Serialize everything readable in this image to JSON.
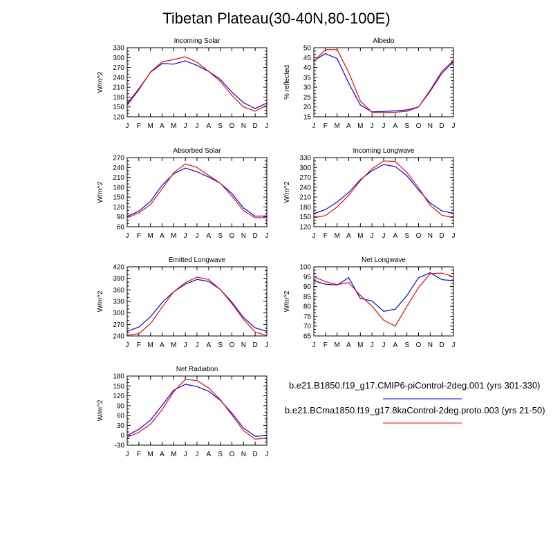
{
  "title": "Tibetan Plateau(30-40N,80-100E)",
  "legend": [
    {
      "label": "b.e21.B1850.f19_g17.CMIP6-piControl-2deg.001 (yrs 301-330)",
      "color": "#0000ff"
    },
    {
      "label": "b.e21.BCma1850.f19_g17.8kaControl-2deg.proto.003 (yrs 21-50)",
      "color": "#ff0000"
    }
  ],
  "chart_data": [
    {
      "type": "line",
      "title": "Incoming Solar",
      "ylabel": "W/m^2",
      "x": [
        "J",
        "F",
        "M",
        "A",
        "M",
        "J",
        "J",
        "A",
        "S",
        "O",
        "N",
        "D",
        "J"
      ],
      "ylim": [
        120,
        330
      ],
      "yticks": [
        120,
        150,
        180,
        210,
        240,
        270,
        300,
        330
      ],
      "series": [
        {
          "color": "#0000ff",
          "values": [
            160,
            205,
            255,
            282,
            280,
            290,
            276,
            258,
            234,
            195,
            163,
            145,
            162
          ]
        },
        {
          "color": "#ff0000",
          "values": [
            155,
            202,
            256,
            287,
            294,
            302,
            286,
            258,
            228,
            185,
            150,
            137,
            156
          ]
        }
      ]
    },
    {
      "type": "line",
      "title": "Albedo",
      "ylabel": "% reflected",
      "x": [
        "J",
        "F",
        "M",
        "A",
        "M",
        "J",
        "J",
        "A",
        "S",
        "O",
        "N",
        "D",
        "J"
      ],
      "ylim": [
        15,
        50
      ],
      "yticks": [
        15,
        20,
        25,
        30,
        35,
        40,
        45,
        50
      ],
      "series": [
        {
          "color": "#0000ff",
          "values": [
            43.5,
            47,
            44.5,
            32,
            21,
            17.5,
            17.7,
            18,
            18.5,
            20,
            28,
            37,
            43
          ]
        },
        {
          "color": "#ff0000",
          "values": [
            43,
            49,
            49,
            37.5,
            23,
            17.2,
            17.2,
            17.3,
            17.8,
            20,
            28.5,
            38,
            43.5
          ]
        }
      ]
    },
    {
      "type": "line",
      "title": "Absorbed Solar",
      "ylabel": "W/m^2",
      "x": [
        "J",
        "F",
        "M",
        "A",
        "M",
        "J",
        "J",
        "A",
        "S",
        "O",
        "N",
        "D",
        "J"
      ],
      "ylim": [
        60,
        270
      ],
      "yticks": [
        60,
        90,
        120,
        150,
        180,
        210,
        240,
        270
      ],
      "series": [
        {
          "color": "#0000ff",
          "values": [
            92,
            107,
            137,
            186,
            221,
            238,
            227,
            211,
            192,
            161,
            117,
            92,
            93
          ]
        },
        {
          "color": "#ff0000",
          "values": [
            88,
            102,
            127,
            175,
            224,
            251,
            240,
            216,
            192,
            153,
            109,
            87,
            88
          ]
        }
      ]
    },
    {
      "type": "line",
      "title": "Incoming Longwave",
      "ylabel": "W/m^2",
      "x": [
        "J",
        "F",
        "M",
        "A",
        "M",
        "J",
        "J",
        "A",
        "S",
        "O",
        "N",
        "D",
        "J"
      ],
      "ylim": [
        120,
        330
      ],
      "yticks": [
        120,
        150,
        180,
        210,
        240,
        270,
        300,
        330
      ],
      "series": [
        {
          "color": "#0000ff",
          "values": [
            160,
            172,
            195,
            224,
            263,
            290,
            309,
            303,
            275,
            232,
            192,
            168,
            161
          ]
        },
        {
          "color": "#ff0000",
          "values": [
            147,
            154,
            180,
            216,
            260,
            296,
            320,
            318,
            285,
            238,
            185,
            155,
            147
          ]
        }
      ]
    },
    {
      "type": "line",
      "title": "Emitted Longwave",
      "ylabel": "W/m^2",
      "x": [
        "J",
        "F",
        "M",
        "A",
        "M",
        "J",
        "J",
        "A",
        "S",
        "O",
        "N",
        "D",
        "J"
      ],
      "ylim": [
        240,
        420
      ],
      "yticks": [
        240,
        270,
        300,
        330,
        360,
        390,
        420
      ],
      "series": [
        {
          "color": "#0000ff",
          "values": [
            252,
            263,
            290,
            327,
            355,
            375,
            387,
            382,
            361,
            328,
            288,
            261,
            252
          ]
        },
        {
          "color": "#ff0000",
          "values": [
            242,
            246,
            272,
            315,
            355,
            379,
            393,
            387,
            361,
            324,
            283,
            250,
            241
          ]
        }
      ]
    },
    {
      "type": "line",
      "title": "Net Longwave",
      "ylabel": "W/m^2",
      "x": [
        "J",
        "F",
        "M",
        "A",
        "M",
        "J",
        "J",
        "A",
        "S",
        "O",
        "N",
        "D",
        "J"
      ],
      "ylim": [
        65,
        100
      ],
      "yticks": [
        65,
        70,
        75,
        80,
        85,
        90,
        95,
        100
      ],
      "series": [
        {
          "color": "#0000ff",
          "values": [
            93,
            91.2,
            90.8,
            94.5,
            84,
            82.7,
            77.5,
            78.5,
            85.5,
            94.5,
            97,
            93.5,
            93
          ]
        },
        {
          "color": "#ff0000",
          "values": [
            95,
            92.5,
            91,
            92,
            85.5,
            80,
            73,
            70,
            80,
            89.5,
            96.5,
            96.8,
            95
          ]
        }
      ]
    },
    {
      "type": "line",
      "title": "Net Radiation",
      "ylabel": "W/m^2",
      "x": [
        "J",
        "F",
        "M",
        "A",
        "M",
        "J",
        "J",
        "A",
        "S",
        "O",
        "N",
        "D",
        "J"
      ],
      "ylim": [
        -30,
        180
      ],
      "yticks": [
        -30,
        0,
        30,
        60,
        90,
        120,
        150,
        180
      ],
      "series": [
        {
          "color": "#0000ff",
          "values": [
            -1,
            18,
            46,
            91,
            137,
            155,
            148,
            134,
            106,
            67,
            22,
            -3,
            -1
          ]
        },
        {
          "color": "#ff0000",
          "values": [
            -6,
            9,
            34,
            78,
            133,
            170,
            166,
            144,
            108,
            62,
            14,
            -12,
            -8
          ]
        }
      ]
    }
  ]
}
